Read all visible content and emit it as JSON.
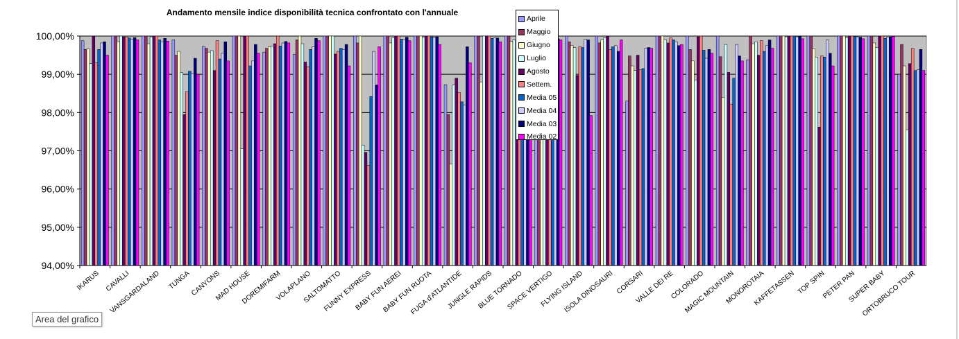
{
  "chart_data": {
    "type": "bar",
    "title": "Andamento mensile indice disponibilità tecnica confrontato con l'annuale",
    "ylim": [
      94,
      100
    ],
    "yticks": [
      "94,00%",
      "95,00%",
      "96,00%",
      "97,00%",
      "98,00%",
      "99,00%",
      "100,00%"
    ],
    "categories": [
      "IKARUS",
      "CAVALLI",
      "VANSGARDALAND",
      "TUNGA",
      "CANYONS",
      "MAD HOUSE",
      "DOREMIFARM",
      "VOLAPLANO",
      "SALTOMATTO",
      "FUNNY EXPRESS",
      "BABY FUN AEREI",
      "BABY FUN RUOTA",
      "FUGA d'ATLANTIDE",
      "JUNGLE RAPIDS",
      "BLUE TORNADO",
      "SPACE VERTIGO",
      "FLYING ISLAND",
      "ISOLA DINOSAURI",
      "CORSARI",
      "VALLE DEI RE",
      "COLORADO",
      "MAGIC MOUNTAIN",
      "MONOROTAIA",
      "KAFFETASSEN",
      "TOP SPIN",
      "PETER PAN",
      "SUPER BABY",
      "ORTOBRUCO TOUR"
    ],
    "series": [
      {
        "name": "Aprile",
        "color": "#9999ff",
        "values": [
          99.88,
          100,
          100,
          99.9,
          99.73,
          100,
          99.58,
          99.52,
          100,
          100,
          100,
          100,
          98.73,
          100,
          100,
          100,
          100,
          100,
          98.3,
          100,
          100,
          100,
          99.38,
          100,
          100,
          100,
          100,
          99.0
        ]
      },
      {
        "name": "Maggio",
        "color": "#993366",
        "values": [
          99.65,
          100,
          100,
          99.5,
          99.68,
          100,
          99.68,
          99.9,
          100,
          99.82,
          100,
          100,
          97.95,
          100,
          100,
          100,
          99.85,
          99.82,
          99.48,
          100,
          99.65,
          99.46,
          100,
          100,
          100,
          100,
          100,
          99.78
        ]
      },
      {
        "name": "Giugno",
        "color": "#ffffcc",
        "values": [
          99.66,
          99.85,
          99.8,
          99.6,
          99.58,
          100,
          99.72,
          100,
          100,
          100,
          99.82,
          100,
          96.65,
          98.8,
          99.86,
          99.9,
          99.75,
          99.9,
          99.22,
          100,
          99.35,
          98.4,
          99.8,
          100,
          99.67,
          100,
          99.82,
          99.22
        ]
      },
      {
        "name": "Luglio",
        "color": "#ccffff",
        "values": [
          99.28,
          100,
          99.98,
          99.05,
          99.62,
          97.05,
          99.74,
          99.8,
          100,
          97.15,
          99.96,
          99.97,
          98.72,
          100,
          99.9,
          99.95,
          99.7,
          99.95,
          99.1,
          99.9,
          98.85,
          99.78,
          99.85,
          99.98,
          99.45,
          99.96,
          99.7,
          97.55
        ]
      },
      {
        "name": "Agosto",
        "color": "#660066",
        "values": [
          100,
          99.98,
          100,
          97.95,
          99.1,
          100,
          99.8,
          99.32,
          99.53,
          96.96,
          100,
          100,
          98.9,
          100,
          99.7,
          99.75,
          98.97,
          100,
          99.5,
          99.82,
          99.98,
          99.05,
          99.5,
          100,
          97.62,
          100,
          100,
          99.28
        ]
      },
      {
        "name": "Settem.",
        "color": "#ff8080",
        "values": [
          99.3,
          99.97,
          100,
          98.55,
          99.88,
          100,
          100,
          99.2,
          99.6,
          96.62,
          100,
          100,
          98.52,
          100,
          99.85,
          99.95,
          99.72,
          99.65,
          99.12,
          99.95,
          100,
          98.22,
          99.88,
          100,
          99.48,
          100,
          100,
          99.68
        ]
      },
      {
        "name": "Media 05",
        "color": "#0066cc",
        "values": [
          99.65,
          99.95,
          99.9,
          99.08,
          99.4,
          99.22,
          99.74,
          99.65,
          99.68,
          98.42,
          99.92,
          99.98,
          98.28,
          99.94,
          99.9,
          99.92,
          99.7,
          99.72,
          99.15,
          99.9,
          99.63,
          98.9,
          99.6,
          100,
          99.45,
          99.99,
          99.94,
          99.1
        ]
      },
      {
        "name": "Media 04",
        "color": "#ccccff",
        "values": [
          99.82,
          99.92,
          99.85,
          99.02,
          99.55,
          99.35,
          99.82,
          99.72,
          99.65,
          99.6,
          99.9,
          99.96,
          98.2,
          99.95,
          99.88,
          99.9,
          99.92,
          99.75,
          99.68,
          99.85,
          99.42,
          99.78,
          99.75,
          99.98,
          99.9,
          99.98,
          99.97,
          99.12
        ]
      },
      {
        "name": "Media 03",
        "color": "#000080",
        "values": [
          99.85,
          99.96,
          99.94,
          99.42,
          99.85,
          99.78,
          99.86,
          99.94,
          99.78,
          98.72,
          99.97,
          99.98,
          99.72,
          99.95,
          99.9,
          99.93,
          99.9,
          99.6,
          99.7,
          99.75,
          99.65,
          99.48,
          99.9,
          99.99,
          99.55,
          99.97,
          99.98,
          99.65
        ]
      },
      {
        "name": "Media 02",
        "color": "#ff00ff",
        "values": [
          99.5,
          99.9,
          99.87,
          99.0,
          99.35,
          99.55,
          99.82,
          99.88,
          99.22,
          99.72,
          99.88,
          99.78,
          99.3,
          99.85,
          99.78,
          99.9,
          97.92,
          99.9,
          99.68,
          99.78,
          99.55,
          99.35,
          99.68,
          99.93,
          99.22,
          99.93,
          99.99,
          99.1
        ]
      }
    ]
  },
  "chart_area_label": "Area del grafico"
}
